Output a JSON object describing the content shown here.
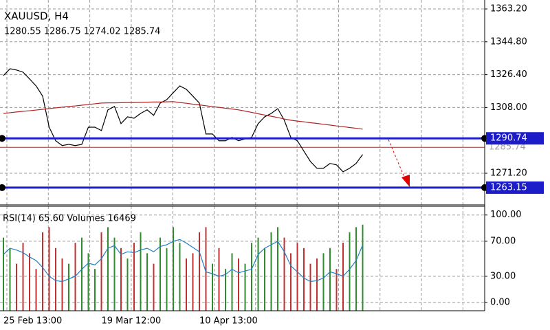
{
  "chart_data": [
    {
      "type": "line",
      "title": "XAUUSD, H4",
      "subtitle": "1280.55 1286.75 1274.02 1285.74",
      "categories": [
        "25 Feb 13:00",
        null,
        null,
        null,
        null,
        null,
        null,
        null,
        null,
        null,
        null,
        null,
        null,
        null,
        null,
        "19 Mar 12:00",
        null,
        null,
        null,
        null,
        null,
        null,
        null,
        null,
        null,
        null,
        null,
        null,
        null,
        null,
        "10 Apr 13:00",
        null,
        null,
        null,
        null,
        null,
        null,
        null,
        null,
        null,
        null,
        null,
        null,
        null,
        null,
        null,
        null,
        null,
        null,
        null,
        null,
        null,
        null,
        null,
        null,
        null
      ],
      "series": [
        {
          "color": "#000000",
          "values": [
            1325.9,
            1329.7,
            1329.0,
            1327.8,
            1324.0,
            1320.1,
            1314.4,
            1297.0,
            1289.4,
            1286.7,
            1287.4,
            1286.7,
            1287.4,
            1297.0,
            1297.0,
            1295.1,
            1306.7,
            1308.6,
            1299.0,
            1302.8,
            1302.0,
            1304.7,
            1306.7,
            1303.6,
            1310.5,
            1312.4,
            1316.3,
            1320.1,
            1318.2,
            1314.4,
            1310.5,
            1293.2,
            1293.2,
            1289.4,
            1289.4,
            1291.3,
            1289.4,
            1290.5,
            1291.3,
            1299.0,
            1302.8,
            1304.7,
            1307.4,
            1300.9,
            1291.3,
            1289.4,
            1283.6,
            1277.8,
            1274.0,
            1274.0,
            1276.7,
            1275.9,
            1272.0,
            1274.0,
            1276.7,
            1281.7
          ]
        },
        {
          "color": "#b22222",
          "values": [
            1304.7,
            1305.1,
            1305.5,
            1305.9,
            1306.2,
            1306.6,
            1307.0,
            1307.4,
            1307.8,
            1308.2,
            1308.6,
            1308.9,
            1309.3,
            1309.7,
            1310.1,
            1310.5,
            1310.6,
            1310.6,
            1310.7,
            1310.8,
            1310.8,
            1310.9,
            1311.0,
            1311.1,
            1311.1,
            1311.2,
            1311.3,
            1310.8,
            1310.4,
            1309.9,
            1309.5,
            1309.0,
            1308.5,
            1308.1,
            1307.6,
            1307.2,
            1306.7,
            1306.0,
            1305.3,
            1304.5,
            1303.8,
            1303.1,
            1302.4,
            1301.6,
            1300.9,
            1300.4,
            1300.0,
            1299.5,
            1299.1,
            1298.6,
            1298.2,
            1297.7,
            1297.3,
            1296.8,
            1296.4,
            1295.9
          ]
        }
      ],
      "levels": [
        1290.74,
        1263.15
      ],
      "level_color": "#1c1cc8",
      "last_price": 1285.74,
      "last_price_color": "#9b3030",
      "ylim": [
        1253.5,
        1368.2
      ],
      "yticks": [
        {
          "value": 1363.2,
          "label": "1363.20"
        },
        {
          "value": 1344.8,
          "label": "1344.80"
        },
        {
          "value": 1326.4,
          "label": "1326.40"
        },
        {
          "value": 1308,
          "label": "1308.00"
        },
        {
          "value": 1271.2,
          "label": "1271.20"
        }
      ],
      "grid": true
    },
    {
      "type": "indicator",
      "title": "RSI(14) 65.60 Volumes 16469",
      "series": [
        {
          "color": "#1f7fc4",
          "values": [
            55,
            62,
            60,
            57,
            52,
            48,
            40,
            30,
            25,
            24,
            27,
            30,
            38,
            45,
            43,
            50,
            62,
            65,
            55,
            58,
            57,
            60,
            62,
            58,
            64,
            66,
            70,
            72,
            68,
            63,
            58,
            35,
            33,
            30,
            32,
            38,
            34,
            36,
            38,
            55,
            62,
            66,
            70,
            58,
            42,
            35,
            28,
            24,
            25,
            28,
            35,
            33,
            30,
            38,
            48,
            65.6
          ]
        },
        {
          "type": "bar",
          "axis": "y2",
          "up_color": "#2e8b2e",
          "down_color": "#c03030",
          "values": [
            14000,
            12000,
            9000,
            13000,
            11000,
            8000,
            15000,
            16000,
            12000,
            10000,
            9000,
            13000,
            14000,
            11000,
            8000,
            15000,
            16000,
            14000,
            12000,
            10000,
            13000,
            15000,
            11000,
            9000,
            14000,
            12000,
            16000,
            13000,
            10000,
            11000,
            15000,
            16000,
            9000,
            12000,
            8000,
            11000,
            10000,
            9000,
            13000,
            14000,
            12000,
            15000,
            16000,
            14000,
            11000,
            13000,
            12000,
            9000,
            10000,
            11000,
            12000,
            8000,
            13000,
            15000,
            16000,
            16469
          ]
        }
      ],
      "ylim": [
        -9.4,
        110
      ],
      "yticks": [
        {
          "value": 100,
          "label": "100.00"
        },
        {
          "value": 70,
          "label": "70.00"
        },
        {
          "value": 30,
          "label": "30.00"
        },
        {
          "value": 0,
          "label": "0.00"
        }
      ],
      "y2lim": [
        0,
        20000
      ],
      "grid": true
    }
  ]
}
